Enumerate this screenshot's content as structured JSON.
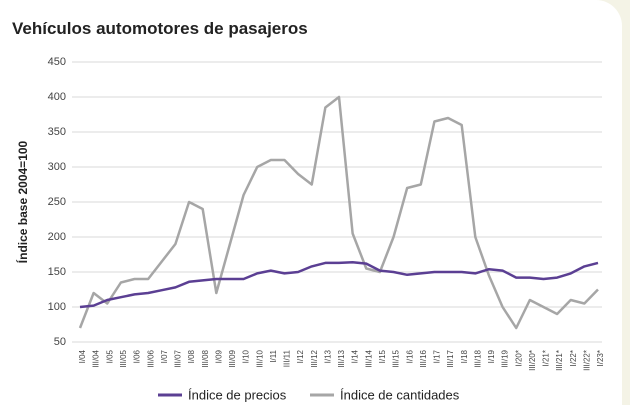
{
  "chart_data": {
    "type": "line",
    "title": "Vehículos automotores de pasajeros",
    "y_label": "Índice base 2004=100",
    "categories": [
      "I/04",
      "III/04",
      "I/05",
      "III/05",
      "I/06",
      "III/06",
      "I/07",
      "III/07",
      "I/08",
      "III/08",
      "I/09",
      "III/09",
      "I/10",
      "III/10",
      "I/11",
      "III/11",
      "I/12",
      "III/12",
      "I/13",
      "III/13",
      "I/14",
      "III/14",
      "I/15",
      "III/15",
      "I/16",
      "III/16",
      "I/17",
      "III/17",
      "I/18",
      "III/18",
      "I/19",
      "III/19",
      "I/20*",
      "III/20*",
      "I/21*",
      "III/21*",
      "I/22*",
      "III/22*",
      "I/23*"
    ],
    "series": [
      {
        "name": "Índice de precios",
        "color": "#5b3f93",
        "values": [
          100,
          102,
          110,
          114,
          118,
          120,
          124,
          128,
          136,
          138,
          140,
          140,
          140,
          148,
          152,
          148,
          150,
          158,
          163,
          163,
          164,
          162,
          152,
          150,
          146,
          148,
          150,
          150,
          150,
          148,
          154,
          152,
          142,
          142,
          140,
          142,
          148,
          158,
          163
        ]
      },
      {
        "name": "Índice de cantidades",
        "color": "#a6a6a6",
        "values": [
          70,
          120,
          105,
          135,
          140,
          140,
          165,
          190,
          250,
          240,
          120,
          190,
          260,
          300,
          310,
          310,
          290,
          275,
          385,
          400,
          205,
          155,
          150,
          200,
          270,
          275,
          365,
          370,
          360,
          200,
          145,
          100,
          70,
          110,
          100,
          90,
          110,
          105,
          125
        ]
      }
    ],
    "ylim": [
      50,
      450
    ],
    "yticks": [
      50,
      100,
      150,
      200,
      250,
      300,
      350,
      400,
      450
    ],
    "grid": true
  }
}
